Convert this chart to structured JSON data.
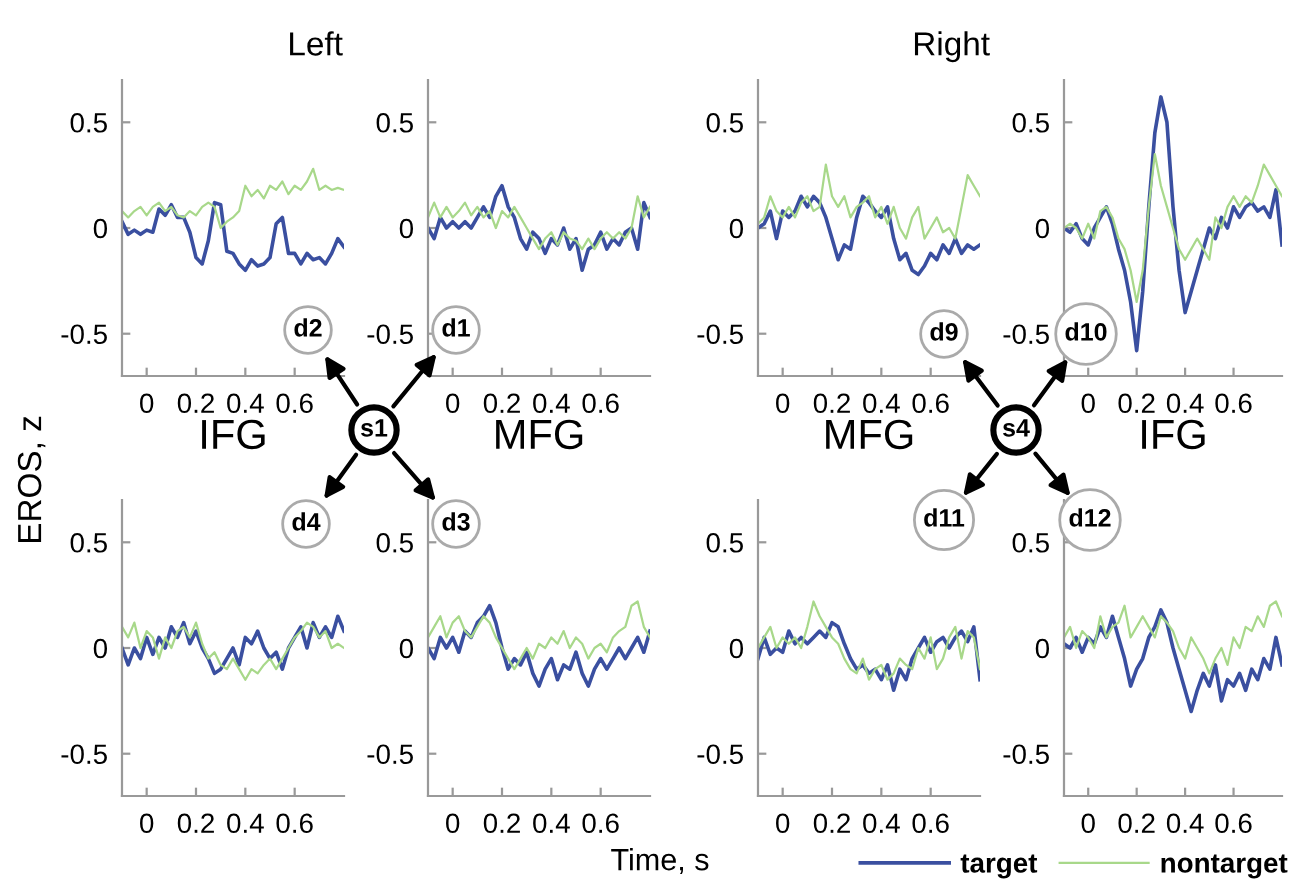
{
  "chart_data": [
    {
      "type": "line",
      "title": "Left",
      "xlabel": "IFG",
      "annotations": [
        "d2",
        "s1"
      ],
      "xlim": [
        -0.1,
        0.8
      ],
      "ylim": [
        -0.7,
        0.7
      ],
      "xticks": [
        0,
        0.2,
        0.4,
        0.6
      ],
      "yticks": [
        -0.5,
        0,
        0.5
      ],
      "grid": false,
      "legend": false,
      "x": [
        -0.1,
        -0.075,
        -0.05,
        -0.025,
        0,
        0.025,
        0.05,
        0.075,
        0.1,
        0.125,
        0.15,
        0.175,
        0.2,
        0.225,
        0.25,
        0.275,
        0.3,
        0.325,
        0.35,
        0.375,
        0.4,
        0.425,
        0.45,
        0.475,
        0.5,
        0.525,
        0.55,
        0.575,
        0.6,
        0.625,
        0.65,
        0.675,
        0.7,
        0.725,
        0.75,
        0.775,
        0.8
      ],
      "series": [
        {
          "color": "#3a4fa0",
          "values": [
            0.03,
            -0.03,
            -0.01,
            -0.03,
            -0.01,
            -0.02,
            0.09,
            0.06,
            0.11,
            0.05,
            0.05,
            -0.02,
            -0.14,
            -0.17,
            -0.06,
            0.12,
            0.11,
            -0.11,
            -0.12,
            -0.17,
            -0.2,
            -0.15,
            -0.18,
            -0.17,
            -0.14,
            0.02,
            0.05,
            -0.12,
            -0.12,
            -0.17,
            -0.12,
            -0.15,
            -0.14,
            -0.17,
            -0.12,
            -0.05,
            -0.09
          ]
        },
        {
          "color": "#a8d88a",
          "values": [
            0.08,
            0.05,
            0.08,
            0.1,
            0.06,
            0.1,
            0.12,
            0.08,
            0.1,
            0.06,
            0.05,
            0.08,
            0.06,
            0.1,
            0.12,
            0.1,
            0.0,
            0.03,
            0.05,
            0.08,
            0.2,
            0.15,
            0.18,
            0.14,
            0.2,
            0.18,
            0.22,
            0.16,
            0.2,
            0.18,
            0.22,
            0.28,
            0.18,
            0.2,
            0.18,
            0.19,
            0.18
          ]
        }
      ]
    },
    {
      "type": "line",
      "xlabel": "MFG",
      "annotations": [
        "d1"
      ],
      "xlim": [
        -0.1,
        0.8
      ],
      "ylim": [
        -0.7,
        0.7
      ],
      "xticks": [
        0,
        0.2,
        0.4,
        0.6
      ],
      "yticks": [
        -0.5,
        0,
        0.5
      ],
      "grid": false,
      "legend": false,
      "x": [
        -0.1,
        -0.075,
        -0.05,
        -0.025,
        0,
        0.025,
        0.05,
        0.075,
        0.1,
        0.125,
        0.15,
        0.175,
        0.2,
        0.225,
        0.25,
        0.275,
        0.3,
        0.325,
        0.35,
        0.375,
        0.4,
        0.425,
        0.45,
        0.475,
        0.5,
        0.525,
        0.55,
        0.575,
        0.6,
        0.625,
        0.65,
        0.675,
        0.7,
        0.725,
        0.75,
        0.775,
        0.8
      ],
      "series": [
        {
          "color": "#3a4fa0",
          "values": [
            0.0,
            -0.05,
            0.05,
            0.0,
            0.03,
            0.0,
            0.03,
            0.0,
            0.05,
            0.1,
            0.05,
            0.15,
            0.2,
            0.1,
            0.05,
            -0.05,
            -0.1,
            -0.02,
            -0.05,
            -0.12,
            -0.05,
            -0.08,
            0.0,
            -0.1,
            -0.05,
            -0.2,
            -0.1,
            -0.08,
            -0.02,
            -0.1,
            -0.05,
            -0.08,
            -0.02,
            0.0,
            -0.1,
            0.12,
            0.05
          ]
        },
        {
          "color": "#a8d88a",
          "values": [
            0.05,
            0.12,
            0.05,
            0.1,
            0.05,
            0.08,
            0.12,
            0.06,
            0.1,
            0.05,
            0.08,
            0.0,
            0.08,
            0.05,
            0.1,
            0.05,
            0.0,
            -0.05,
            -0.1,
            -0.05,
            -0.02,
            -0.08,
            -0.02,
            -0.05,
            -0.06,
            -0.1,
            -0.05,
            -0.1,
            -0.05,
            -0.02,
            -0.05,
            -0.02,
            -0.05,
            0.0,
            0.15,
            0.05,
            0.1
          ]
        }
      ]
    },
    {
      "type": "line",
      "title": "Right",
      "xlabel": "MFG",
      "annotations": [
        "d9",
        "s4"
      ],
      "xlim": [
        -0.1,
        0.8
      ],
      "ylim": [
        -0.7,
        0.7
      ],
      "xticks": [
        0,
        0.2,
        0.4,
        0.6
      ],
      "yticks": [
        -0.5,
        0,
        0.5
      ],
      "grid": false,
      "legend": false,
      "x": [
        -0.1,
        -0.075,
        -0.05,
        -0.025,
        0,
        0.025,
        0.05,
        0.075,
        0.1,
        0.125,
        0.15,
        0.175,
        0.2,
        0.225,
        0.25,
        0.275,
        0.3,
        0.325,
        0.35,
        0.375,
        0.4,
        0.425,
        0.45,
        0.475,
        0.5,
        0.525,
        0.55,
        0.575,
        0.6,
        0.625,
        0.65,
        0.675,
        0.7,
        0.725,
        0.75,
        0.775,
        0.8
      ],
      "series": [
        {
          "color": "#3a4fa0",
          "values": [
            0.0,
            0.02,
            0.08,
            -0.05,
            0.08,
            0.05,
            0.08,
            0.15,
            0.1,
            0.15,
            0.12,
            0.05,
            -0.05,
            -0.15,
            -0.08,
            -0.1,
            0.05,
            0.15,
            0.12,
            0.08,
            0.05,
            0.1,
            -0.05,
            -0.15,
            -0.12,
            -0.2,
            -0.22,
            -0.18,
            -0.12,
            -0.15,
            -0.08,
            -0.12,
            -0.05,
            -0.12,
            -0.08,
            -0.1,
            -0.08
          ]
        },
        {
          "color": "#a8d88a",
          "values": [
            0.02,
            0.05,
            0.15,
            0.08,
            0.05,
            0.1,
            0.05,
            0.12,
            0.15,
            0.08,
            0.1,
            0.3,
            0.15,
            0.1,
            0.15,
            0.05,
            0.1,
            0.12,
            0.15,
            0.05,
            0.1,
            0.02,
            0.1,
            0.0,
            -0.05,
            0.05,
            0.1,
            -0.05,
            0.0,
            0.05,
            -0.02,
            0.0,
            -0.05,
            0.1,
            0.25,
            0.2,
            0.15
          ]
        }
      ]
    },
    {
      "type": "line",
      "xlabel": "IFG",
      "annotations": [
        "d10"
      ],
      "xlim": [
        -0.1,
        0.8
      ],
      "ylim": [
        -0.7,
        0.7
      ],
      "xticks": [
        0,
        0.2,
        0.4,
        0.6
      ],
      "yticks": [
        -0.5,
        0,
        0.5
      ],
      "grid": false,
      "legend": false,
      "x": [
        -0.1,
        -0.075,
        -0.05,
        -0.025,
        0,
        0.025,
        0.05,
        0.075,
        0.1,
        0.125,
        0.15,
        0.175,
        0.2,
        0.225,
        0.25,
        0.275,
        0.3,
        0.325,
        0.35,
        0.375,
        0.4,
        0.425,
        0.45,
        0.475,
        0.5,
        0.525,
        0.55,
        0.575,
        0.6,
        0.625,
        0.65,
        0.675,
        0.7,
        0.725,
        0.75,
        0.775,
        0.8
      ],
      "series": [
        {
          "color": "#3a4fa0",
          "values": [
            0.0,
            -0.02,
            0.02,
            -0.05,
            -0.08,
            0.0,
            0.05,
            0.1,
            0.02,
            -0.1,
            -0.2,
            -0.35,
            -0.58,
            -0.3,
            0.1,
            0.45,
            0.62,
            0.5,
            0.1,
            -0.2,
            -0.4,
            -0.3,
            -0.2,
            -0.1,
            0.0,
            -0.05,
            0.05,
            0.0,
            0.1,
            0.05,
            0.1,
            0.12,
            0.08,
            0.1,
            0.05,
            0.18,
            -0.08
          ]
        },
        {
          "color": "#a8d88a",
          "values": [
            0.0,
            0.02,
            0.0,
            -0.05,
            0.02,
            -0.05,
            0.08,
            0.1,
            0.05,
            -0.05,
            -0.1,
            -0.2,
            -0.35,
            -0.2,
            0.1,
            0.35,
            0.2,
            0.1,
            0.0,
            -0.1,
            -0.15,
            -0.1,
            -0.05,
            -0.1,
            -0.15,
            0.05,
            0.0,
            0.1,
            0.15,
            0.1,
            0.15,
            0.12,
            0.2,
            0.3,
            0.25,
            0.2,
            0.15
          ]
        }
      ]
    },
    {
      "type": "line",
      "annotations": [
        "d4"
      ],
      "xlim": [
        -0.1,
        0.8
      ],
      "ylim": [
        -0.7,
        0.7
      ],
      "xticks": [
        0,
        0.2,
        0.4,
        0.6
      ],
      "yticks": [
        -0.5,
        0,
        0.5
      ],
      "grid": false,
      "legend": false,
      "x": [
        -0.1,
        -0.075,
        -0.05,
        -0.025,
        0,
        0.025,
        0.05,
        0.075,
        0.1,
        0.125,
        0.15,
        0.175,
        0.2,
        0.225,
        0.25,
        0.275,
        0.3,
        0.325,
        0.35,
        0.375,
        0.4,
        0.425,
        0.45,
        0.475,
        0.5,
        0.525,
        0.55,
        0.575,
        0.6,
        0.625,
        0.65,
        0.675,
        0.7,
        0.725,
        0.75,
        0.775,
        0.8
      ],
      "series": [
        {
          "color": "#3a4fa0",
          "values": [
            0.0,
            -0.08,
            0.0,
            -0.05,
            0.05,
            -0.03,
            0.05,
            0.0,
            0.1,
            0.05,
            0.12,
            0.02,
            0.08,
            0.0,
            -0.05,
            -0.12,
            -0.1,
            -0.05,
            0.0,
            -0.08,
            0.05,
            0.02,
            0.08,
            0.0,
            -0.05,
            -0.02,
            -0.1,
            0.0,
            0.05,
            0.1,
            0.0,
            0.12,
            0.05,
            0.1,
            0.05,
            0.15,
            0.08
          ]
        },
        {
          "color": "#a8d88a",
          "values": [
            0.1,
            0.05,
            0.12,
            0.0,
            0.08,
            0.05,
            -0.05,
            0.05,
            0.0,
            0.08,
            0.1,
            0.05,
            0.12,
            0.02,
            -0.05,
            -0.02,
            -0.08,
            -0.1,
            -0.05,
            -0.1,
            -0.15,
            -0.1,
            -0.12,
            -0.08,
            -0.05,
            -0.1,
            -0.05,
            0.0,
            0.05,
            0.08,
            0.12,
            0.1,
            0.05,
            0.08,
            0.0,
            0.02,
            0.0
          ]
        }
      ]
    },
    {
      "type": "line",
      "annotations": [
        "d3"
      ],
      "xlim": [
        -0.1,
        0.8
      ],
      "ylim": [
        -0.7,
        0.7
      ],
      "xticks": [
        0,
        0.2,
        0.4,
        0.6
      ],
      "yticks": [
        -0.5,
        0,
        0.5
      ],
      "grid": false,
      "legend": false,
      "x": [
        -0.1,
        -0.075,
        -0.05,
        -0.025,
        0,
        0.025,
        0.05,
        0.075,
        0.1,
        0.125,
        0.15,
        0.175,
        0.2,
        0.225,
        0.25,
        0.275,
        0.3,
        0.325,
        0.35,
        0.375,
        0.4,
        0.425,
        0.45,
        0.475,
        0.5,
        0.525,
        0.55,
        0.575,
        0.6,
        0.625,
        0.65,
        0.675,
        0.7,
        0.725,
        0.75,
        0.775,
        0.8
      ],
      "series": [
        {
          "color": "#3a4fa0",
          "values": [
            0.0,
            -0.05,
            0.05,
            0.0,
            0.05,
            -0.02,
            0.08,
            0.05,
            0.12,
            0.15,
            0.2,
            0.12,
            0.0,
            -0.1,
            -0.05,
            -0.08,
            -0.02,
            -0.12,
            -0.18,
            -0.1,
            -0.05,
            -0.15,
            -0.08,
            -0.1,
            -0.02,
            -0.12,
            -0.18,
            -0.1,
            -0.05,
            -0.1,
            -0.05,
            0.0,
            -0.05,
            0.0,
            0.05,
            -0.02,
            0.08
          ]
        },
        {
          "color": "#a8d88a",
          "values": [
            0.05,
            0.1,
            0.15,
            0.05,
            0.12,
            0.15,
            0.08,
            0.05,
            0.1,
            0.15,
            0.12,
            0.05,
            0.0,
            -0.05,
            -0.1,
            -0.05,
            0.0,
            -0.05,
            0.02,
            0.0,
            0.05,
            0.02,
            0.08,
            0.0,
            0.05,
            0.02,
            -0.05,
            0.0,
            0.02,
            -0.02,
            0.05,
            0.08,
            0.1,
            0.2,
            0.22,
            0.1,
            0.05
          ]
        }
      ]
    },
    {
      "type": "line",
      "annotations": [
        "d11"
      ],
      "xlim": [
        -0.1,
        0.8
      ],
      "ylim": [
        -0.7,
        0.7
      ],
      "xticks": [
        0,
        0.2,
        0.4,
        0.6
      ],
      "yticks": [
        -0.5,
        0,
        0.5
      ],
      "grid": false,
      "legend": false,
      "x": [
        -0.1,
        -0.075,
        -0.05,
        -0.025,
        0,
        0.025,
        0.05,
        0.075,
        0.1,
        0.125,
        0.15,
        0.175,
        0.2,
        0.225,
        0.25,
        0.275,
        0.3,
        0.325,
        0.35,
        0.375,
        0.4,
        0.425,
        0.45,
        0.475,
        0.5,
        0.525,
        0.55,
        0.575,
        0.6,
        0.625,
        0.65,
        0.675,
        0.7,
        0.725,
        0.75,
        0.775,
        0.8
      ],
      "series": [
        {
          "color": "#3a4fa0",
          "values": [
            -0.05,
            0.05,
            -0.03,
            0.0,
            -0.02,
            0.08,
            0.02,
            0.05,
            0.02,
            0.05,
            0.08,
            0.05,
            0.12,
            0.1,
            0.02,
            -0.05,
            -0.1,
            -0.08,
            -0.12,
            -0.1,
            -0.15,
            -0.08,
            -0.2,
            -0.1,
            -0.15,
            -0.05,
            0.0,
            0.05,
            -0.02,
            0.03,
            0.05,
            0.0,
            0.05,
            0.08,
            0.03,
            0.1,
            -0.15
          ]
        },
        {
          "color": "#a8d88a",
          "values": [
            0.0,
            0.05,
            0.1,
            0.0,
            0.05,
            0.02,
            0.05,
            0.0,
            0.1,
            0.22,
            0.15,
            0.1,
            0.05,
            0.02,
            -0.05,
            -0.1,
            -0.12,
            -0.05,
            -0.15,
            -0.1,
            -0.08,
            -0.15,
            -0.12,
            -0.05,
            -0.08,
            -0.1,
            0.0,
            -0.05,
            0.05,
            -0.1,
            -0.05,
            0.05,
            0.1,
            -0.05,
            0.08,
            0.05,
            -0.1
          ]
        }
      ]
    },
    {
      "type": "line",
      "annotations": [
        "d12"
      ],
      "xlim": [
        -0.1,
        0.8
      ],
      "ylim": [
        -0.7,
        0.7
      ],
      "xticks": [
        0,
        0.2,
        0.4,
        0.6
      ],
      "yticks": [
        -0.5,
        0,
        0.5
      ],
      "grid": false,
      "legend": "bottom",
      "x": [
        -0.1,
        -0.075,
        -0.05,
        -0.025,
        0,
        0.025,
        0.05,
        0.075,
        0.1,
        0.125,
        0.15,
        0.175,
        0.2,
        0.225,
        0.25,
        0.275,
        0.3,
        0.325,
        0.35,
        0.375,
        0.4,
        0.425,
        0.45,
        0.475,
        0.5,
        0.525,
        0.55,
        0.575,
        0.6,
        0.625,
        0.65,
        0.675,
        0.7,
        0.725,
        0.75,
        0.775,
        0.8
      ],
      "series": [
        {
          "name": "target",
          "color": "#3a4fa0",
          "values": [
            0.02,
            0.0,
            0.05,
            -0.02,
            0.05,
            0.02,
            0.1,
            0.05,
            0.15,
            0.05,
            -0.05,
            -0.18,
            -0.1,
            -0.05,
            0.05,
            0.1,
            0.18,
            0.12,
            0.0,
            -0.1,
            -0.2,
            -0.3,
            -0.2,
            -0.12,
            -0.18,
            -0.08,
            -0.25,
            -0.15,
            -0.18,
            -0.12,
            -0.2,
            -0.1,
            -0.15,
            -0.05,
            -0.1,
            0.05,
            -0.08
          ]
        },
        {
          "name": "nontarget",
          "color": "#a8d88a",
          "values": [
            0.05,
            0.1,
            0.0,
            0.08,
            0.05,
            0.0,
            0.15,
            0.05,
            0.1,
            0.12,
            0.2,
            0.05,
            0.1,
            0.15,
            0.1,
            0.05,
            0.15,
            0.12,
            0.08,
            0.0,
            -0.05,
            0.05,
            0.0,
            -0.05,
            -0.12,
            -0.05,
            0.0,
            -0.08,
            0.05,
            0.0,
            0.1,
            0.08,
            0.15,
            0.1,
            0.2,
            0.22,
            0.15
          ]
        }
      ]
    },
    {
      "type": "other",
      "xlabel": "Time, s",
      "ylabel": "EROS, z"
    }
  ]
}
